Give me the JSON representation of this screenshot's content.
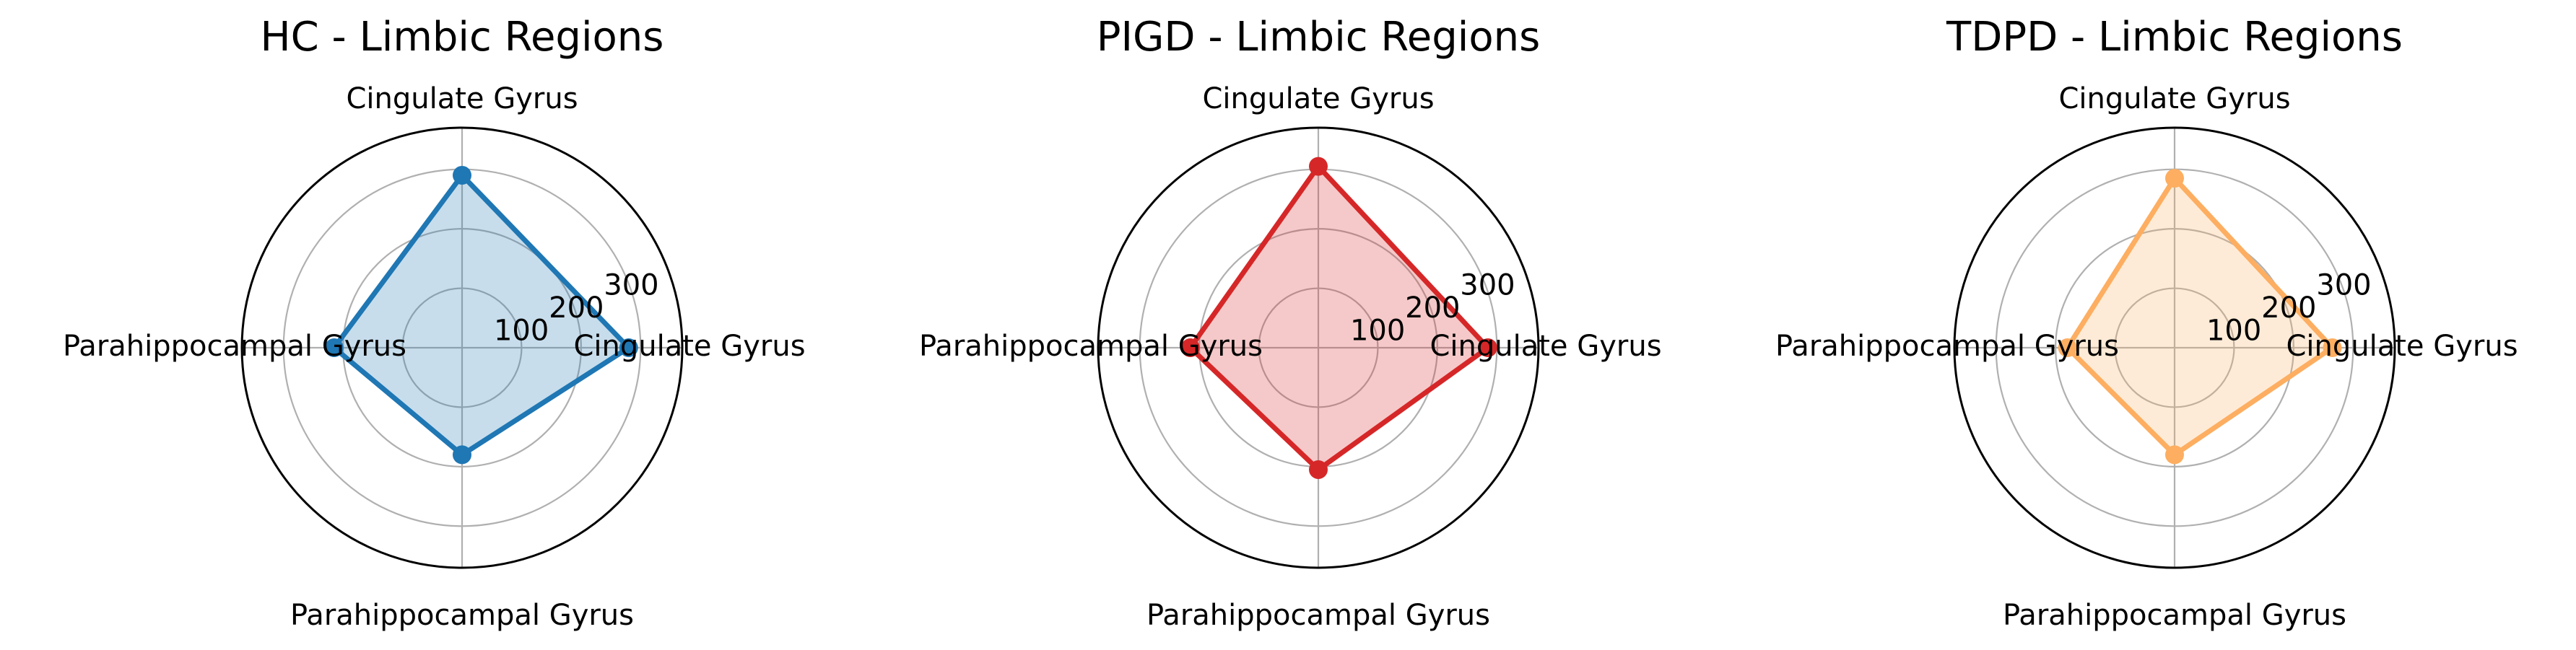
{
  "chart_data": [
    {
      "type": "radar",
      "title": "HC - Limbic Regions",
      "axes": [
        "Cingulate Gyrus",
        "Cingulate Gyrus",
        "Parahippocampal Gyrus",
        "Parahippocampal Gyrus"
      ],
      "radial_ticks": [
        100,
        200,
        300
      ],
      "rlim": [
        0,
        370
      ],
      "grid": true,
      "series": [
        {
          "values": [
            290,
            280,
            180,
            215
          ],
          "color": "#1f77b4"
        }
      ]
    },
    {
      "type": "radar",
      "title": "PIGD - Limbic Regions",
      "axes": [
        "Cingulate Gyrus",
        "Cingulate Gyrus",
        "Parahippocampal Gyrus",
        "Parahippocampal Gyrus"
      ],
      "radial_ticks": [
        100,
        200,
        300
      ],
      "rlim": [
        0,
        370
      ],
      "grid": true,
      "series": [
        {
          "values": [
            305,
            285,
            205,
            215
          ],
          "color": "#d62728"
        }
      ]
    },
    {
      "type": "radar",
      "title": "TDPD - Limbic Regions",
      "axes": [
        "Cingulate Gyrus",
        "Cingulate Gyrus",
        "Parahippocampal Gyrus",
        "Parahippocampal Gyrus"
      ],
      "radial_ticks": [
        100,
        200,
        300
      ],
      "rlim": [
        0,
        370
      ],
      "grid": true,
      "series": [
        {
          "values": [
            285,
            265,
            180,
            180
          ],
          "color": "#fdae61"
        }
      ]
    }
  ]
}
